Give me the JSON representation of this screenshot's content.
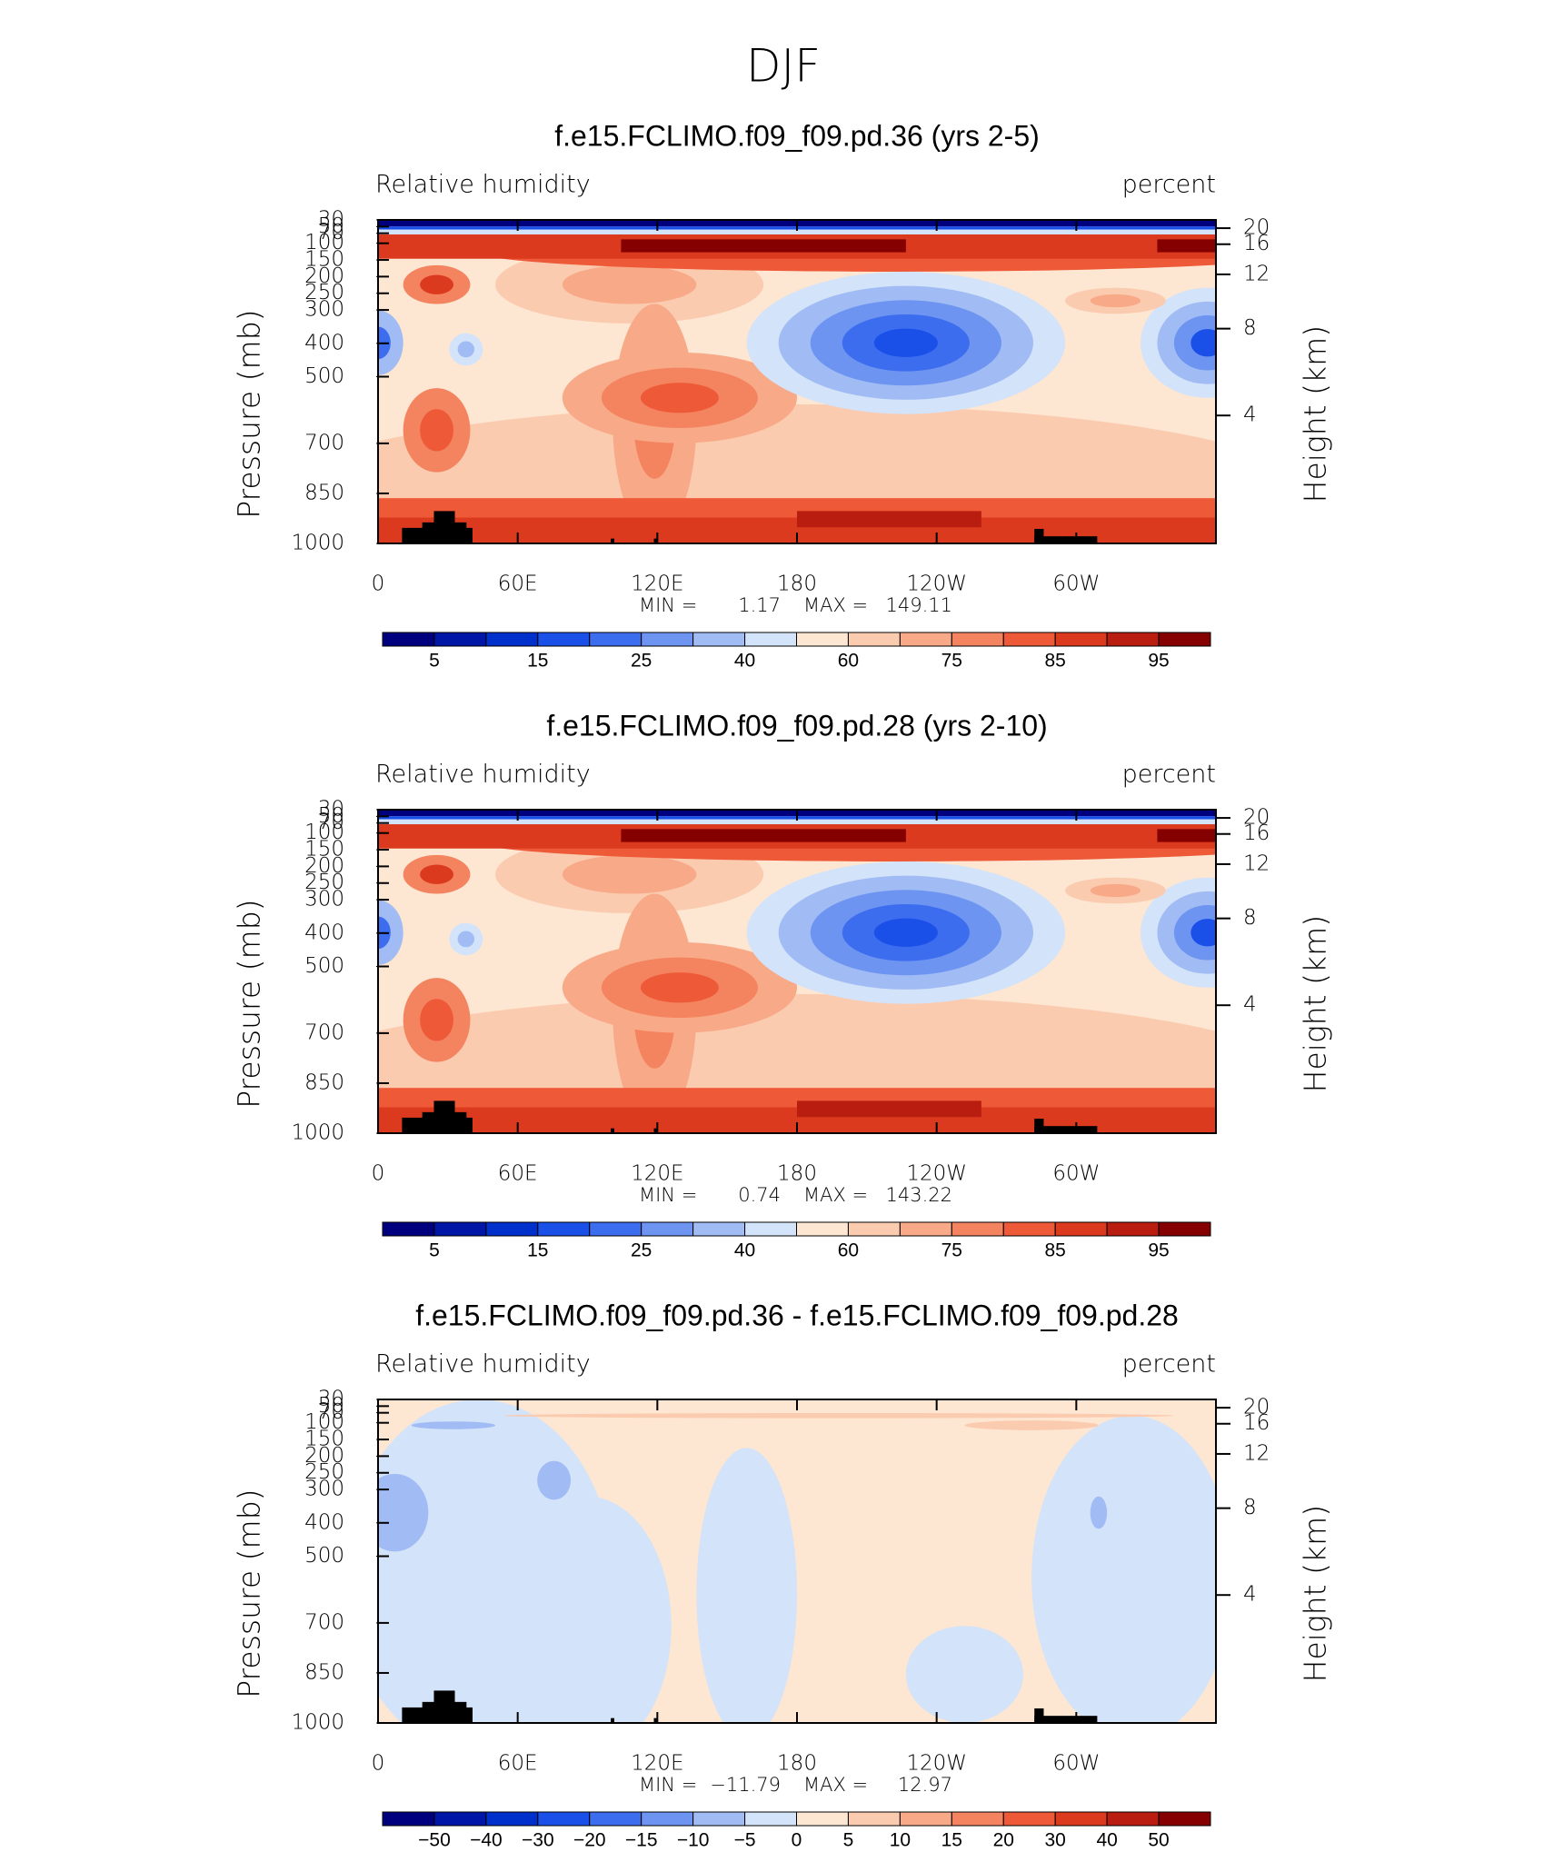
{
  "figure": {
    "title": "DJF"
  },
  "chart_data": [
    {
      "type": "contour",
      "title": "f.e15.FCLIMO.f09_f09.pd.36 (yrs 2-5)",
      "subtitle_left": "Relative humidity",
      "subtitle_right": "percent",
      "ylabel": "Pressure (mb)",
      "y2label": "Height (km)",
      "xlim": [
        0,
        360
      ],
      "xticks": [
        0,
        {
          "value": 60,
          "label": "60E"
        },
        {
          "value": 120,
          "label": "120E"
        },
        180,
        {
          "value": 240,
          "label": "120W"
        },
        {
          "value": 300,
          "label": "60W"
        }
      ],
      "ylim": [
        1000,
        30
      ],
      "yticks": [
        30,
        50,
        70,
        100,
        150,
        200,
        250,
        300,
        400,
        500,
        700,
        850,
        1000
      ],
      "y2ticks": [
        20,
        16,
        12,
        8,
        4
      ],
      "min_label": "MIN =",
      "min": 1.17,
      "max_label": "MAX =",
      "max": 149.11,
      "colorbar": {
        "colors": [
          "#00007f",
          "#0016a6",
          "#0030cc",
          "#1a4fe8",
          "#3d6def",
          "#6d94f1",
          "#a1bcf4",
          "#d3e3f9",
          "#fde6d2",
          "#fbcbb0",
          "#f8a987",
          "#f4835f",
          "#ee5a38",
          "#dc3a1e",
          "#b81d0f",
          "#850000"
        ],
        "ticks": [
          5,
          15,
          25,
          40,
          60,
          75,
          85,
          95
        ]
      }
    },
    {
      "type": "contour",
      "title": "f.e15.FCLIMO.f09_f09.pd.28 (yrs 2-10)",
      "subtitle_left": "Relative humidity",
      "subtitle_right": "percent",
      "ylabel": "Pressure (mb)",
      "y2label": "Height (km)",
      "xlim": [
        0,
        360
      ],
      "xticks": [
        0,
        {
          "value": 60,
          "label": "60E"
        },
        {
          "value": 120,
          "label": "120E"
        },
        180,
        {
          "value": 240,
          "label": "120W"
        },
        {
          "value": 300,
          "label": "60W"
        }
      ],
      "ylim": [
        1000,
        30
      ],
      "yticks": [
        30,
        50,
        70,
        100,
        150,
        200,
        250,
        300,
        400,
        500,
        700,
        850,
        1000
      ],
      "y2ticks": [
        20,
        16,
        12,
        8,
        4
      ],
      "min_label": "MIN =",
      "min": 0.74,
      "max_label": "MAX =",
      "max": 143.22,
      "colorbar": {
        "colors": [
          "#00007f",
          "#0016a6",
          "#0030cc",
          "#1a4fe8",
          "#3d6def",
          "#6d94f1",
          "#a1bcf4",
          "#d3e3f9",
          "#fde6d2",
          "#fbcbb0",
          "#f8a987",
          "#f4835f",
          "#ee5a38",
          "#dc3a1e",
          "#b81d0f",
          "#850000"
        ],
        "ticks": [
          5,
          15,
          25,
          40,
          60,
          75,
          85,
          95
        ]
      }
    },
    {
      "type": "contour",
      "title": "f.e15.FCLIMO.f09_f09.pd.36 - f.e15.FCLIMO.f09_f09.pd.28",
      "subtitle_left": "Relative humidity",
      "subtitle_right": "percent",
      "ylabel": "Pressure (mb)",
      "y2label": "Height (km)",
      "xlim": [
        0,
        360
      ],
      "xticks": [
        0,
        {
          "value": 60,
          "label": "60E"
        },
        {
          "value": 120,
          "label": "120E"
        },
        180,
        {
          "value": 240,
          "label": "120W"
        },
        {
          "value": 300,
          "label": "60W"
        }
      ],
      "ylim": [
        1000,
        30
      ],
      "yticks": [
        30,
        50,
        70,
        100,
        150,
        200,
        250,
        300,
        400,
        500,
        700,
        850,
        1000
      ],
      "y2ticks": [
        20,
        16,
        12,
        8,
        4
      ],
      "min_label": "MIN =",
      "min": {
        "value": -11.79,
        "label": "−11.79"
      },
      "max_label": "MAX =",
      "max": 12.97,
      "colorbar": {
        "colors": [
          "#00007f",
          "#0016a6",
          "#0030cc",
          "#1a4fe8",
          "#3d6def",
          "#6d94f1",
          "#a1bcf4",
          "#d3e3f9",
          "#fde6d2",
          "#fbcbb0",
          "#f8a987",
          "#f4835f",
          "#ee5a38",
          "#dc3a1e",
          "#b81d0f",
          "#850000"
        ],
        "ticks": [
          {
            "value": -50,
            "label": "−50"
          },
          {
            "value": -40,
            "label": "−40"
          },
          {
            "value": -30,
            "label": "−30"
          },
          {
            "value": -20,
            "label": "−20"
          },
          {
            "value": -15,
            "label": "−15"
          },
          {
            "value": -10,
            "label": "−10"
          },
          {
            "value": -5,
            "label": "−5"
          },
          0,
          5,
          10,
          15,
          20,
          30,
          40,
          50
        ]
      }
    }
  ]
}
